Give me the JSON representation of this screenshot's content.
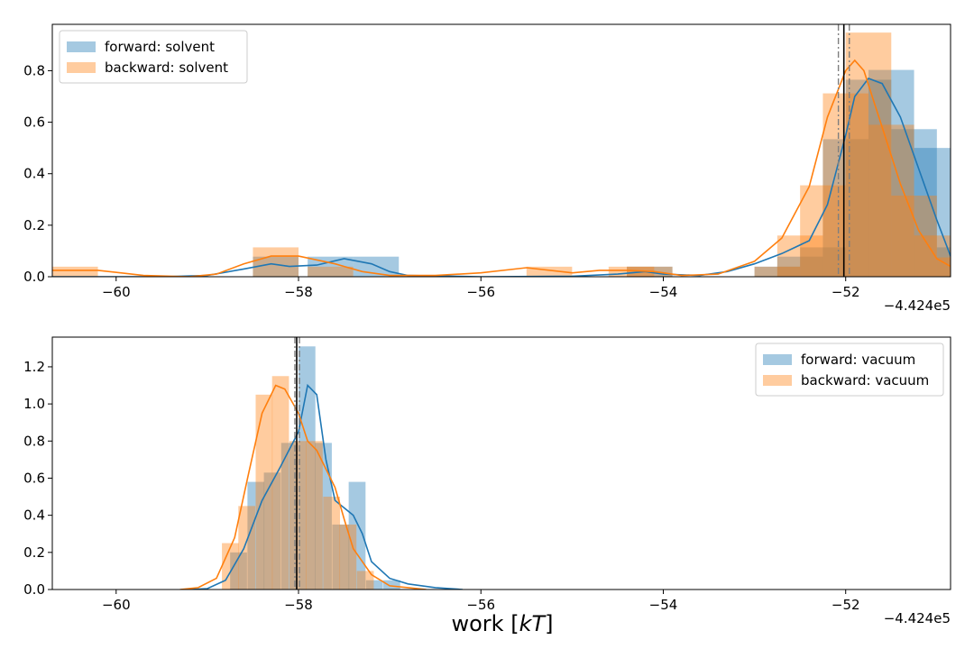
{
  "chart_data": [
    {
      "type": "histogram",
      "xlabel": "",
      "offset_label": "−4.424e5",
      "xlim": [
        -60.7,
        -50.85
      ],
      "ylim": [
        0,
        0.98
      ],
      "xticks": [
        -60,
        -58,
        -56,
        -54,
        -52
      ],
      "xtick_labels": [
        "−60",
        "−58",
        "−56",
        "−54",
        "−52"
      ],
      "yticks": [
        0,
        0.2,
        0.4,
        0.6,
        0.8
      ],
      "ytick_labels": [
        "0.0",
        "0.2",
        "0.4",
        "0.6",
        "0.8"
      ],
      "legend_position": "top-left",
      "grid": false,
      "bar_width": 0.5,
      "series": [
        {
          "name": "forward: solvent",
          "color": "#1f77b4",
          "bar_lefts": [
            -58.5,
            -57.9,
            -57.4,
            -54.4,
            -53.0,
            -52.75,
            -52.5,
            -52.25,
            -52.0,
            -51.75,
            -51.5,
            -51.25,
            -51.0
          ],
          "bar_values": [
            0.078,
            0.078,
            0.078,
            0.039,
            0.039,
            0.078,
            0.114,
            0.534,
            0.765,
            0.803,
            0.573,
            0.5,
            0.114
          ],
          "kde_x": [
            -60.7,
            -60.2,
            -59.5,
            -59.0,
            -58.6,
            -58.3,
            -58.1,
            -57.8,
            -57.5,
            -57.2,
            -57.0,
            -56.8,
            -56.0,
            -55.0,
            -54.5,
            -54.2,
            -54.0,
            -53.6,
            -53.3,
            -53.0,
            -52.7,
            -52.4,
            -52.2,
            -52.0,
            -51.9,
            -51.75,
            -51.6,
            -51.4,
            -51.2,
            -51.0,
            -50.85
          ],
          "kde_y": [
            0.0,
            0.0,
            0.0,
            0.005,
            0.03,
            0.05,
            0.04,
            0.045,
            0.07,
            0.05,
            0.02,
            0.005,
            0.0,
            0.002,
            0.01,
            0.02,
            0.01,
            0.005,
            0.02,
            0.05,
            0.09,
            0.14,
            0.28,
            0.55,
            0.7,
            0.77,
            0.75,
            0.62,
            0.42,
            0.22,
            0.08
          ]
        },
        {
          "name": "backward: solvent",
          "color": "#ff7f0e",
          "bar_lefts": [
            -60.7,
            -58.5,
            -57.9,
            -55.5,
            -54.6,
            -54.4,
            -53.0,
            -52.75,
            -52.5,
            -52.25,
            -52.0,
            -51.75,
            -51.5,
            -51.25,
            -51.0
          ],
          "bar_values": [
            0.039,
            0.114,
            0.039,
            0.039,
            0.039,
            0.039,
            0.039,
            0.16,
            0.355,
            0.712,
            0.948,
            0.59,
            0.315,
            0.16,
            0.075
          ],
          "kde_x": [
            -60.7,
            -60.2,
            -59.7,
            -59.2,
            -58.9,
            -58.6,
            -58.3,
            -58.0,
            -57.6,
            -57.3,
            -57.0,
            -56.5,
            -56.0,
            -55.5,
            -55.0,
            -54.7,
            -54.4,
            -54.1,
            -53.8,
            -53.4,
            -53.0,
            -52.7,
            -52.4,
            -52.2,
            -52.0,
            -51.9,
            -51.8,
            -51.6,
            -51.4,
            -51.2,
            -51.0,
            -50.85
          ],
          "kde_y": [
            0.025,
            0.025,
            0.005,
            0.0,
            0.01,
            0.05,
            0.08,
            0.08,
            0.05,
            0.02,
            0.005,
            0.005,
            0.015,
            0.035,
            0.015,
            0.025,
            0.025,
            0.02,
            0.005,
            0.01,
            0.06,
            0.15,
            0.35,
            0.62,
            0.8,
            0.84,
            0.8,
            0.58,
            0.36,
            0.18,
            0.07,
            0.04
          ]
        }
      ],
      "vlines": [
        {
          "x": -52.08,
          "style": "dashdot",
          "color": "#7f7f7f"
        },
        {
          "x": -52.02,
          "style": "solid",
          "color": "#000000"
        },
        {
          "x": -51.96,
          "style": "dashdot",
          "color": "#7f7f7f"
        }
      ]
    },
    {
      "type": "histogram",
      "xlabel": "work [kT]",
      "offset_label": "−4.424e5",
      "xlim": [
        -60.7,
        -50.85
      ],
      "ylim": [
        0,
        1.36
      ],
      "xticks": [
        -60,
        -58,
        -56,
        -54,
        -52
      ],
      "xtick_labels": [
        "−60",
        "−58",
        "−56",
        "−54",
        "−52"
      ],
      "yticks": [
        0,
        0.2,
        0.4,
        0.6,
        0.8,
        1.0,
        1.2
      ],
      "ytick_labels": [
        "0.0",
        "0.2",
        "0.4",
        "0.6",
        "0.8",
        "1.0",
        "1.2"
      ],
      "legend_position": "top-right",
      "grid": false,
      "bar_width": 0.185,
      "series": [
        {
          "name": "forward: vacuum",
          "color": "#1f77b4",
          "bar_lefts": [
            -58.75,
            -58.56,
            -58.38,
            -58.19,
            -58.0,
            -57.82,
            -57.63,
            -57.45,
            -57.26,
            -57.07,
            -56.89
          ],
          "bar_values": [
            0.2,
            0.58,
            0.63,
            0.79,
            1.31,
            0.79,
            0.35,
            0.58,
            0.05,
            0.05,
            0.0
          ],
          "kde_x": [
            -59.2,
            -59.0,
            -58.8,
            -58.6,
            -58.4,
            -58.2,
            -58.0,
            -57.9,
            -57.8,
            -57.7,
            -57.6,
            -57.4,
            -57.3,
            -57.2,
            -57.0,
            -56.8,
            -56.5,
            -56.2
          ],
          "kde_y": [
            0.0,
            0.005,
            0.05,
            0.22,
            0.48,
            0.66,
            0.85,
            1.1,
            1.05,
            0.7,
            0.48,
            0.4,
            0.3,
            0.15,
            0.06,
            0.03,
            0.01,
            0.0
          ],
          "kde_x_fixed": true
        },
        {
          "name": "backward: vacuum",
          "color": "#ff7f0e",
          "bar_lefts": [
            -58.84,
            -58.66,
            -58.47,
            -58.29,
            -58.1,
            -57.92,
            -57.73,
            -57.55,
            -57.36,
            -57.18
          ],
          "bar_values": [
            0.25,
            0.45,
            1.05,
            1.15,
            0.8,
            0.8,
            0.5,
            0.35,
            0.1,
            0.0
          ],
          "kde_x": [
            -59.3,
            -59.1,
            -58.9,
            -58.7,
            -58.55,
            -58.4,
            -58.25,
            -58.15,
            -58.0,
            -57.9,
            -57.8,
            -57.6,
            -57.5,
            -57.4,
            -57.2,
            -57.0,
            -56.8,
            -56.6
          ],
          "kde_y": [
            0.0,
            0.01,
            0.06,
            0.28,
            0.62,
            0.95,
            1.1,
            1.08,
            0.95,
            0.8,
            0.75,
            0.55,
            0.38,
            0.22,
            0.08,
            0.02,
            0.01,
            0.0
          ]
        }
      ],
      "vlines": [
        {
          "x": -58.04,
          "style": "dashdot",
          "color": "#7f7f7f"
        },
        {
          "x": -58.02,
          "style": "solid",
          "color": "#000000"
        },
        {
          "x": -57.99,
          "style": "dashdot",
          "color": "#7f7f7f"
        }
      ]
    }
  ]
}
